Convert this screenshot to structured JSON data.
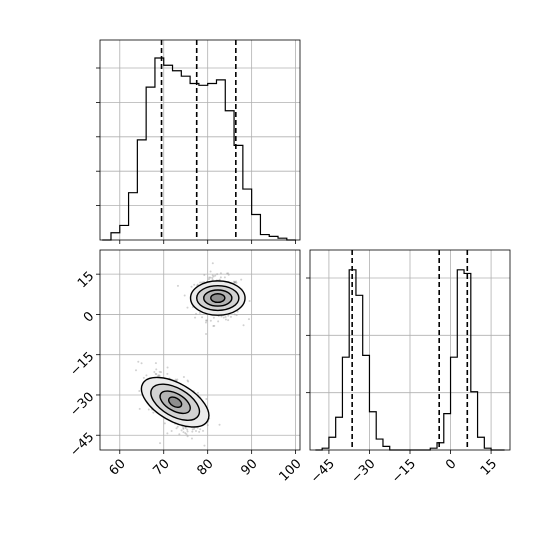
{
  "chart_data": [
    {
      "type": "histogram",
      "panel": "x-marginal",
      "bin_edges": [
        56,
        58,
        60,
        62,
        64,
        66,
        68,
        70,
        72,
        74,
        76,
        78,
        80,
        82,
        84,
        86,
        88,
        90,
        92,
        94,
        96,
        98,
        100
      ],
      "counts": [
        0.0,
        0.04,
        0.08,
        0.26,
        0.55,
        0.84,
        1.0,
        0.96,
        0.93,
        0.9,
        0.86,
        0.85,
        0.86,
        0.88,
        0.71,
        0.52,
        0.28,
        0.14,
        0.03,
        0.02,
        0.01,
        0.0
      ],
      "quantile_lines": [
        69.5,
        77.5,
        86.4
      ],
      "xlim": [
        55.5,
        101.0
      ],
      "xticks": [
        60,
        70,
        80,
        90,
        100
      ],
      "y_tick_count": 5,
      "grid": true
    },
    {
      "type": "histogram",
      "panel": "y-marginal",
      "bin_edges": [
        -50,
        -47.5,
        -45,
        -42.5,
        -40,
        -37.5,
        -35,
        -32.5,
        -30,
        -27.5,
        -25,
        -22.5,
        -20,
        -17.5,
        -15,
        -12.5,
        -10,
        -7.5,
        -5,
        -2.5,
        0,
        2.5,
        5,
        7.5,
        10,
        12.5,
        15,
        17.5,
        20
      ],
      "counts": [
        0.0,
        0.01,
        0.07,
        0.18,
        0.51,
        0.99,
        0.85,
        0.52,
        0.21,
        0.06,
        0.02,
        0.0,
        0.0,
        0.0,
        0.0,
        0.0,
        0.0,
        0.01,
        0.04,
        0.2,
        0.51,
        0.99,
        0.97,
        0.32,
        0.07,
        0.01,
        0.0,
        0.0
      ],
      "quantile_lines": [
        -36.4,
        -4.2,
        6.2
      ],
      "xlim": [
        -52,
        22
      ],
      "xticks": [
        -45,
        -30,
        -15,
        0,
        15
      ],
      "y_tick_count": 3,
      "grid": true
    },
    {
      "type": "scatter",
      "panel": "2d-density",
      "xlim": [
        55.5,
        101.0
      ],
      "ylim": [
        -50.5,
        24.0
      ],
      "xticks": [
        60,
        70,
        80,
        90,
        100
      ],
      "yticks": [
        -45,
        -30,
        -15,
        0,
        15
      ],
      "clusters": [
        {
          "center": [
            82.3,
            6.1
          ],
          "contour_levels_sd": [
            [
              6.2,
              3.2
            ],
            [
              4.8,
              2.3
            ],
            [
              3.2,
              1.5
            ],
            [
              1.6,
              0.8
            ]
          ],
          "angle_deg": 0
        },
        {
          "center": [
            72.6,
            -32.7
          ],
          "contour_levels_sd": [
            [
              8.5,
              3.5
            ],
            [
              6.1,
              2.6
            ],
            [
              3.8,
              1.6
            ],
            [
              1.6,
              0.8
            ]
          ],
          "angle_deg": -30
        }
      ],
      "grid": true
    }
  ]
}
